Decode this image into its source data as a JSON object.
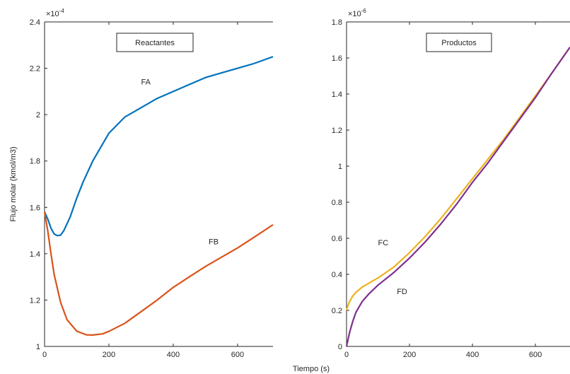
{
  "figure": {
    "xlabel": "Tiempo (s)"
  },
  "chart_data": [
    {
      "type": "line",
      "title": "",
      "legend_box": "Reactantes",
      "xlabel": "",
      "ylabel": "Flujo molar (kmol/m3)",
      "exponent_label": "×10",
      "exponent_power": "-4",
      "xlim": [
        0,
        710
      ],
      "ylim": [
        1.0,
        2.4
      ],
      "xticks": [
        0,
        200,
        400,
        600
      ],
      "xtick_labels": [
        "0",
        "200",
        "400",
        "600"
      ],
      "yticks": [
        1.0,
        1.2,
        1.4,
        1.6,
        1.8,
        2.0,
        2.2,
        2.4
      ],
      "ytick_labels": [
        "1",
        "1.2",
        "1.4",
        "1.6",
        "1.8",
        "2",
        "2.2",
        "2.4"
      ],
      "grid": false,
      "series": [
        {
          "name": "FA",
          "color": "#0072BD",
          "label_at": [
            300,
            2.13
          ],
          "x": [
            0,
            10,
            20,
            30,
            40,
            50,
            60,
            80,
            100,
            120,
            150,
            200,
            250,
            300,
            350,
            400,
            450,
            500,
            550,
            600,
            650,
            710
          ],
          "y": [
            1.58,
            1.55,
            1.51,
            1.485,
            1.478,
            1.48,
            1.5,
            1.56,
            1.64,
            1.71,
            1.8,
            1.92,
            1.99,
            2.03,
            2.07,
            2.1,
            2.13,
            2.16,
            2.18,
            2.2,
            2.22,
            2.25
          ]
        },
        {
          "name": "FB",
          "color": "#D95319",
          "label_at": [
            510,
            1.44
          ],
          "x": [
            0,
            10,
            20,
            30,
            50,
            70,
            100,
            130,
            150,
            180,
            200,
            250,
            300,
            350,
            400,
            450,
            500,
            550,
            600,
            650,
            710
          ],
          "y": [
            1.58,
            1.5,
            1.4,
            1.31,
            1.19,
            1.115,
            1.066,
            1.05,
            1.049,
            1.054,
            1.065,
            1.1,
            1.15,
            1.2,
            1.255,
            1.3,
            1.345,
            1.385,
            1.425,
            1.47,
            1.525
          ]
        }
      ]
    },
    {
      "type": "line",
      "title": "",
      "legend_box": "Productos",
      "xlabel": "",
      "ylabel": "",
      "exponent_label": "×10",
      "exponent_power": "-6",
      "xlim": [
        0,
        710
      ],
      "ylim": [
        0,
        1.8
      ],
      "xticks": [
        0,
        200,
        400,
        600
      ],
      "xtick_labels": [
        "0",
        "200",
        "400",
        "600"
      ],
      "yticks": [
        0,
        0.2,
        0.4,
        0.6,
        0.8,
        1.0,
        1.2,
        1.4,
        1.6,
        1.8
      ],
      "ytick_labels": [
        "0",
        "0.2",
        "0.4",
        "0.6",
        "0.8",
        "1",
        "1.2",
        "1.4",
        "1.6",
        "1.8"
      ],
      "grid": false,
      "series": [
        {
          "name": "FC",
          "color": "#EDB120",
          "label_at": [
            100,
            0.56
          ],
          "x": [
            0,
            5,
            10,
            20,
            30,
            50,
            70,
            100,
            150,
            200,
            250,
            300,
            350,
            400,
            450,
            500,
            550,
            600,
            650,
            710
          ],
          "y": [
            0.2,
            0.23,
            0.25,
            0.28,
            0.3,
            0.33,
            0.35,
            0.38,
            0.44,
            0.52,
            0.61,
            0.71,
            0.82,
            0.93,
            1.04,
            1.15,
            1.27,
            1.39,
            1.51,
            1.66
          ]
        },
        {
          "name": "FD",
          "color": "#7E2F8E",
          "label_at": [
            160,
            0.29
          ],
          "x": [
            0,
            5,
            10,
            20,
            30,
            50,
            70,
            100,
            150,
            200,
            250,
            300,
            350,
            400,
            450,
            500,
            550,
            600,
            650,
            710
          ],
          "y": [
            0.0,
            0.04,
            0.08,
            0.14,
            0.19,
            0.25,
            0.29,
            0.34,
            0.41,
            0.49,
            0.58,
            0.68,
            0.79,
            0.91,
            1.02,
            1.14,
            1.26,
            1.38,
            1.51,
            1.66
          ]
        }
      ]
    }
  ]
}
